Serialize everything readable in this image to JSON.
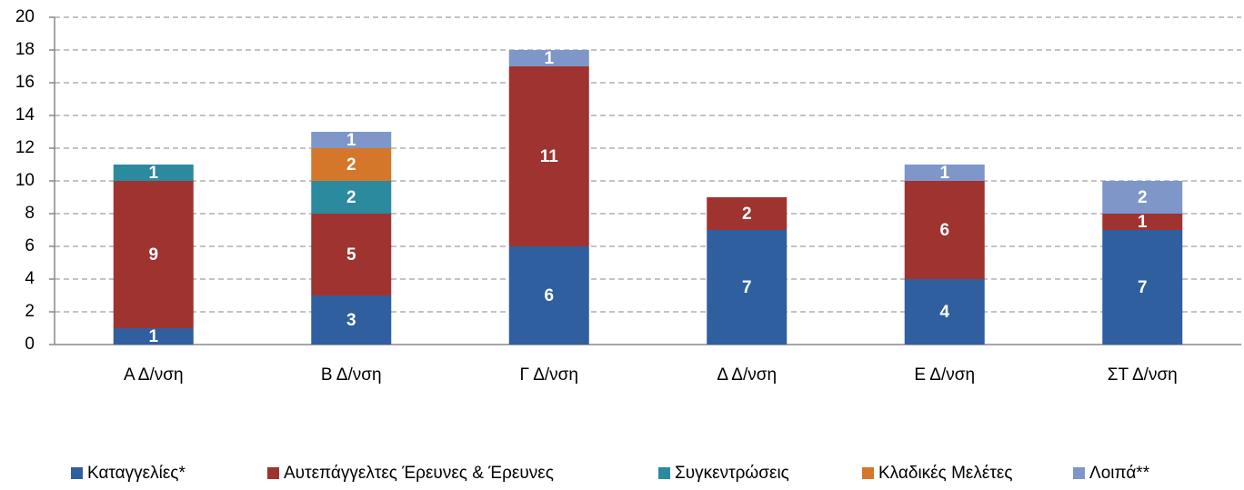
{
  "chart_data": {
    "type": "stacked-bar",
    "categories": [
      "Α Δ/νση",
      "Β Δ/νση",
      "Γ Δ/νση",
      "Δ Δ/νση",
      "Ε Δ/νση",
      "ΣΤ Δ/νση"
    ],
    "series": [
      {
        "name": "Καταγγελίες*",
        "color": "#2f5f9e",
        "values": [
          1,
          3,
          6,
          7,
          4,
          7
        ]
      },
      {
        "name": "Αυτεπάγγελτες Έρευνες & Έρευνες",
        "color": "#9e3330",
        "values": [
          9,
          5,
          11,
          2,
          6,
          1
        ]
      },
      {
        "name": "Συγκεντρώσεις",
        "color": "#2b8a9e",
        "values": [
          1,
          2,
          null,
          null,
          null,
          null
        ]
      },
      {
        "name": "Κλαδικές Μελέτες",
        "color": "#d5772a",
        "values": [
          null,
          2,
          null,
          null,
          null,
          null
        ]
      },
      {
        "name": "Λοιπά**",
        "color": "#7e97c8",
        "values": [
          null,
          1,
          1,
          null,
          1,
          2
        ]
      }
    ],
    "ylim": [
      0,
      20
    ],
    "yticks": [
      0,
      2,
      4,
      6,
      8,
      10,
      12,
      14,
      16,
      18,
      20
    ],
    "grid": true,
    "legend": "bottom"
  }
}
